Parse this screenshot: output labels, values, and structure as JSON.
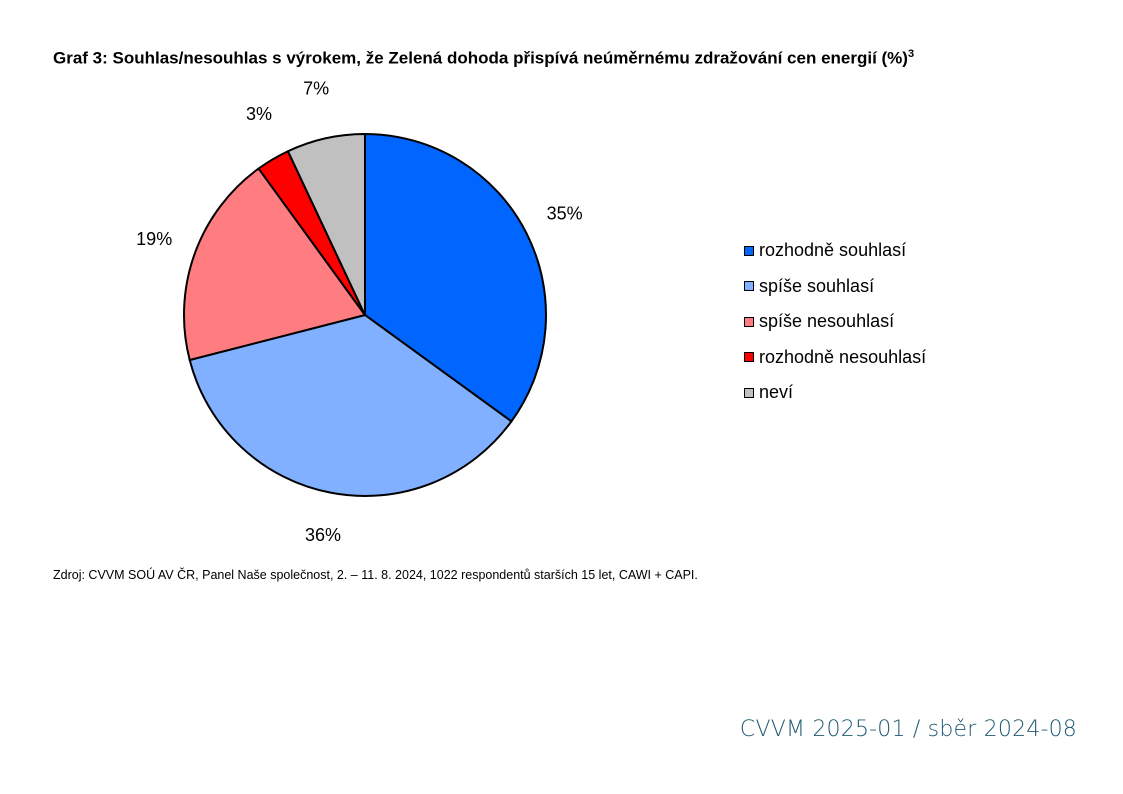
{
  "title": {
    "text": "Graf 3: Souhlas/nesouhlas s výrokem, že Zelená dohoda přispívá neúměrnému zdražování cen energií (%)",
    "footnote_mark": "3"
  },
  "chart_data": {
    "type": "pie",
    "title": "Graf 3: Souhlas/nesouhlas s výrokem, že Zelená dohoda přispívá neúměrnému zdražování cen energií (%)",
    "unit": "%",
    "start_angle": "12 o'clock",
    "direction": "clockwise",
    "legend_position": "right",
    "slices": [
      {
        "label": "rozhodně souhlasí",
        "value": 35,
        "display": "35%",
        "color": "#0066FF"
      },
      {
        "label": "spíše souhlasí",
        "value": 36,
        "display": "36%",
        "color": "#80B0FF"
      },
      {
        "label": "spíše nesouhlasí",
        "value": 19,
        "display": "19%",
        "color": "#FF7C80"
      },
      {
        "label": "rozhodně nesouhlasí",
        "value": 3,
        "display": "3%",
        "color": "#FF0000"
      },
      {
        "label": "neví",
        "value": 7,
        "display": "7%",
        "color": "#C0C0C0"
      }
    ]
  },
  "source": "Zdroj: CVVM SOÚ AV ČR, Panel Naše společnost, 2. – 11. 8. 2024, 1022 respondentů starších 15 let, CAWI + CAPI.",
  "footer": "CVVM 2025-01 / sběr 2024-08",
  "colors": {
    "footer_text": "#1F5A73",
    "slice_border": "#000000"
  }
}
